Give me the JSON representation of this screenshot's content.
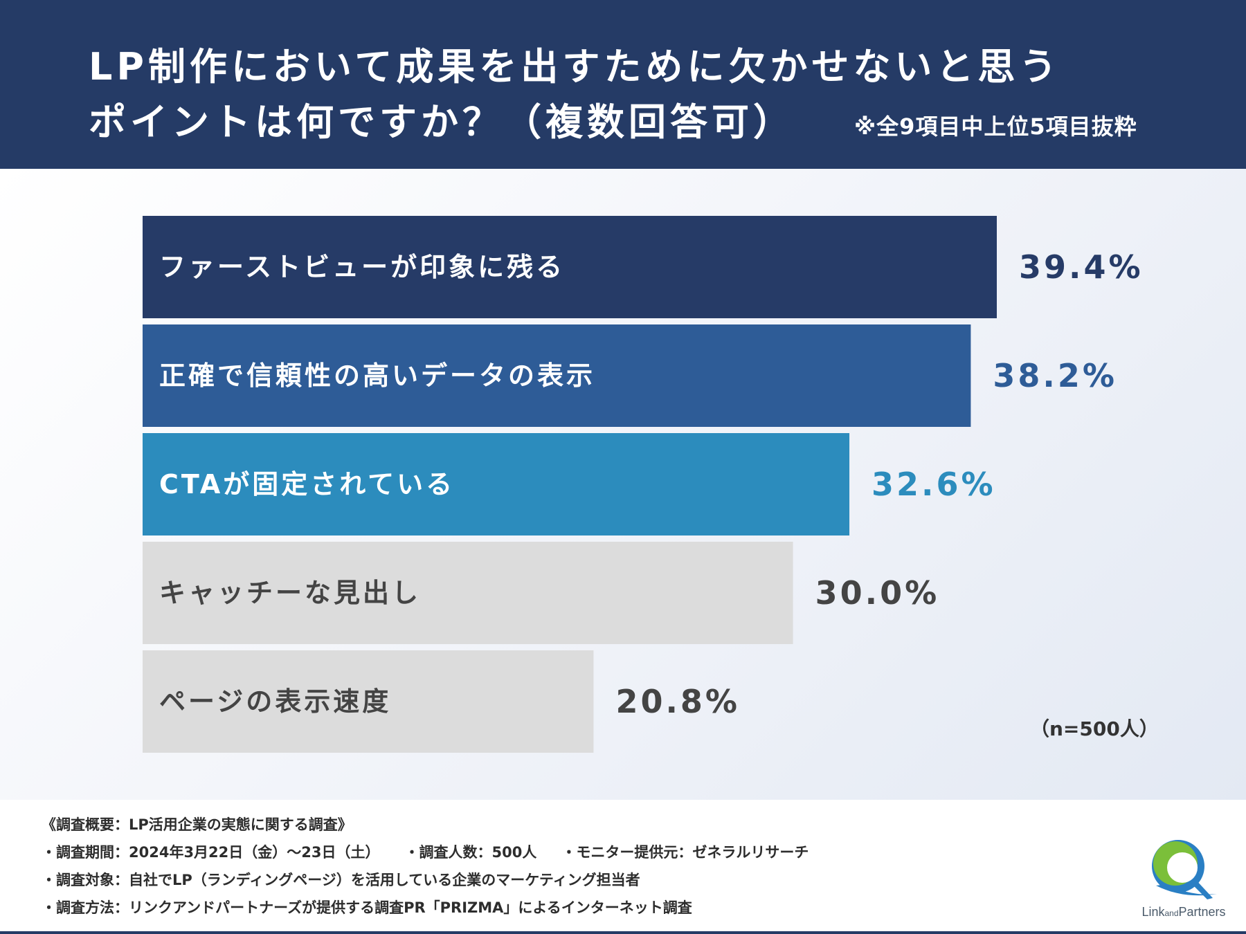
{
  "title": {
    "line1": "LP制作において成果を出すために欠かせないと思う",
    "line2": "ポイントは何ですか？（複数回答可）",
    "note": "※全9項目中上位5項目抜粋"
  },
  "chart_data": {
    "type": "bar",
    "orientation": "horizontal",
    "categories": [
      "ファーストビューが印象に残る",
      "正確で信頼性の高いデータの表示",
      "CTAが固定されている",
      "キャッチーな見出し",
      "ページの表示速度"
    ],
    "values": [
      39.4,
      38.2,
      32.6,
      30.0,
      20.8
    ],
    "value_labels": [
      "39.4%",
      "38.2%",
      "32.6%",
      "30.0%",
      "20.8%"
    ],
    "unit": "%",
    "xlim": [
      0,
      39.4
    ],
    "bar_colors": [
      "#263b67",
      "#2e5c97",
      "#2c8cbd",
      "#dcdcdc",
      "#dcdcdc"
    ],
    "label_colors": [
      "#ffffff",
      "#ffffff",
      "#ffffff",
      "#444444",
      "#444444"
    ],
    "value_colors": [
      "#263b67",
      "#2e5c97",
      "#2c8cbd",
      "#444444",
      "#444444"
    ],
    "sample_note": "（n=500人）"
  },
  "footer": {
    "overview": "《調査概要：LP活用企業の実態に関する調査》",
    "period": "・調査期間：2024年3月22日（金）～23日（土）",
    "respondents": "・調査人数：500人",
    "provider": "・モニター提供元：ゼネラルリサーチ",
    "target": "・調査対象：自社でLP（ランディングページ）を活用している企業のマーケティング担当者",
    "method": "・調査方法：リンクアンドパートナーズが提供する調査PR「PRIZMA」によるインターネット調査"
  },
  "logo": {
    "name_link": "Link",
    "name_and": "and",
    "name_partners": "Partners"
  },
  "colors": {
    "header_bg": "#253b66",
    "accent_green": "#7bbf3a",
    "accent_blue": "#2a7fc4"
  }
}
